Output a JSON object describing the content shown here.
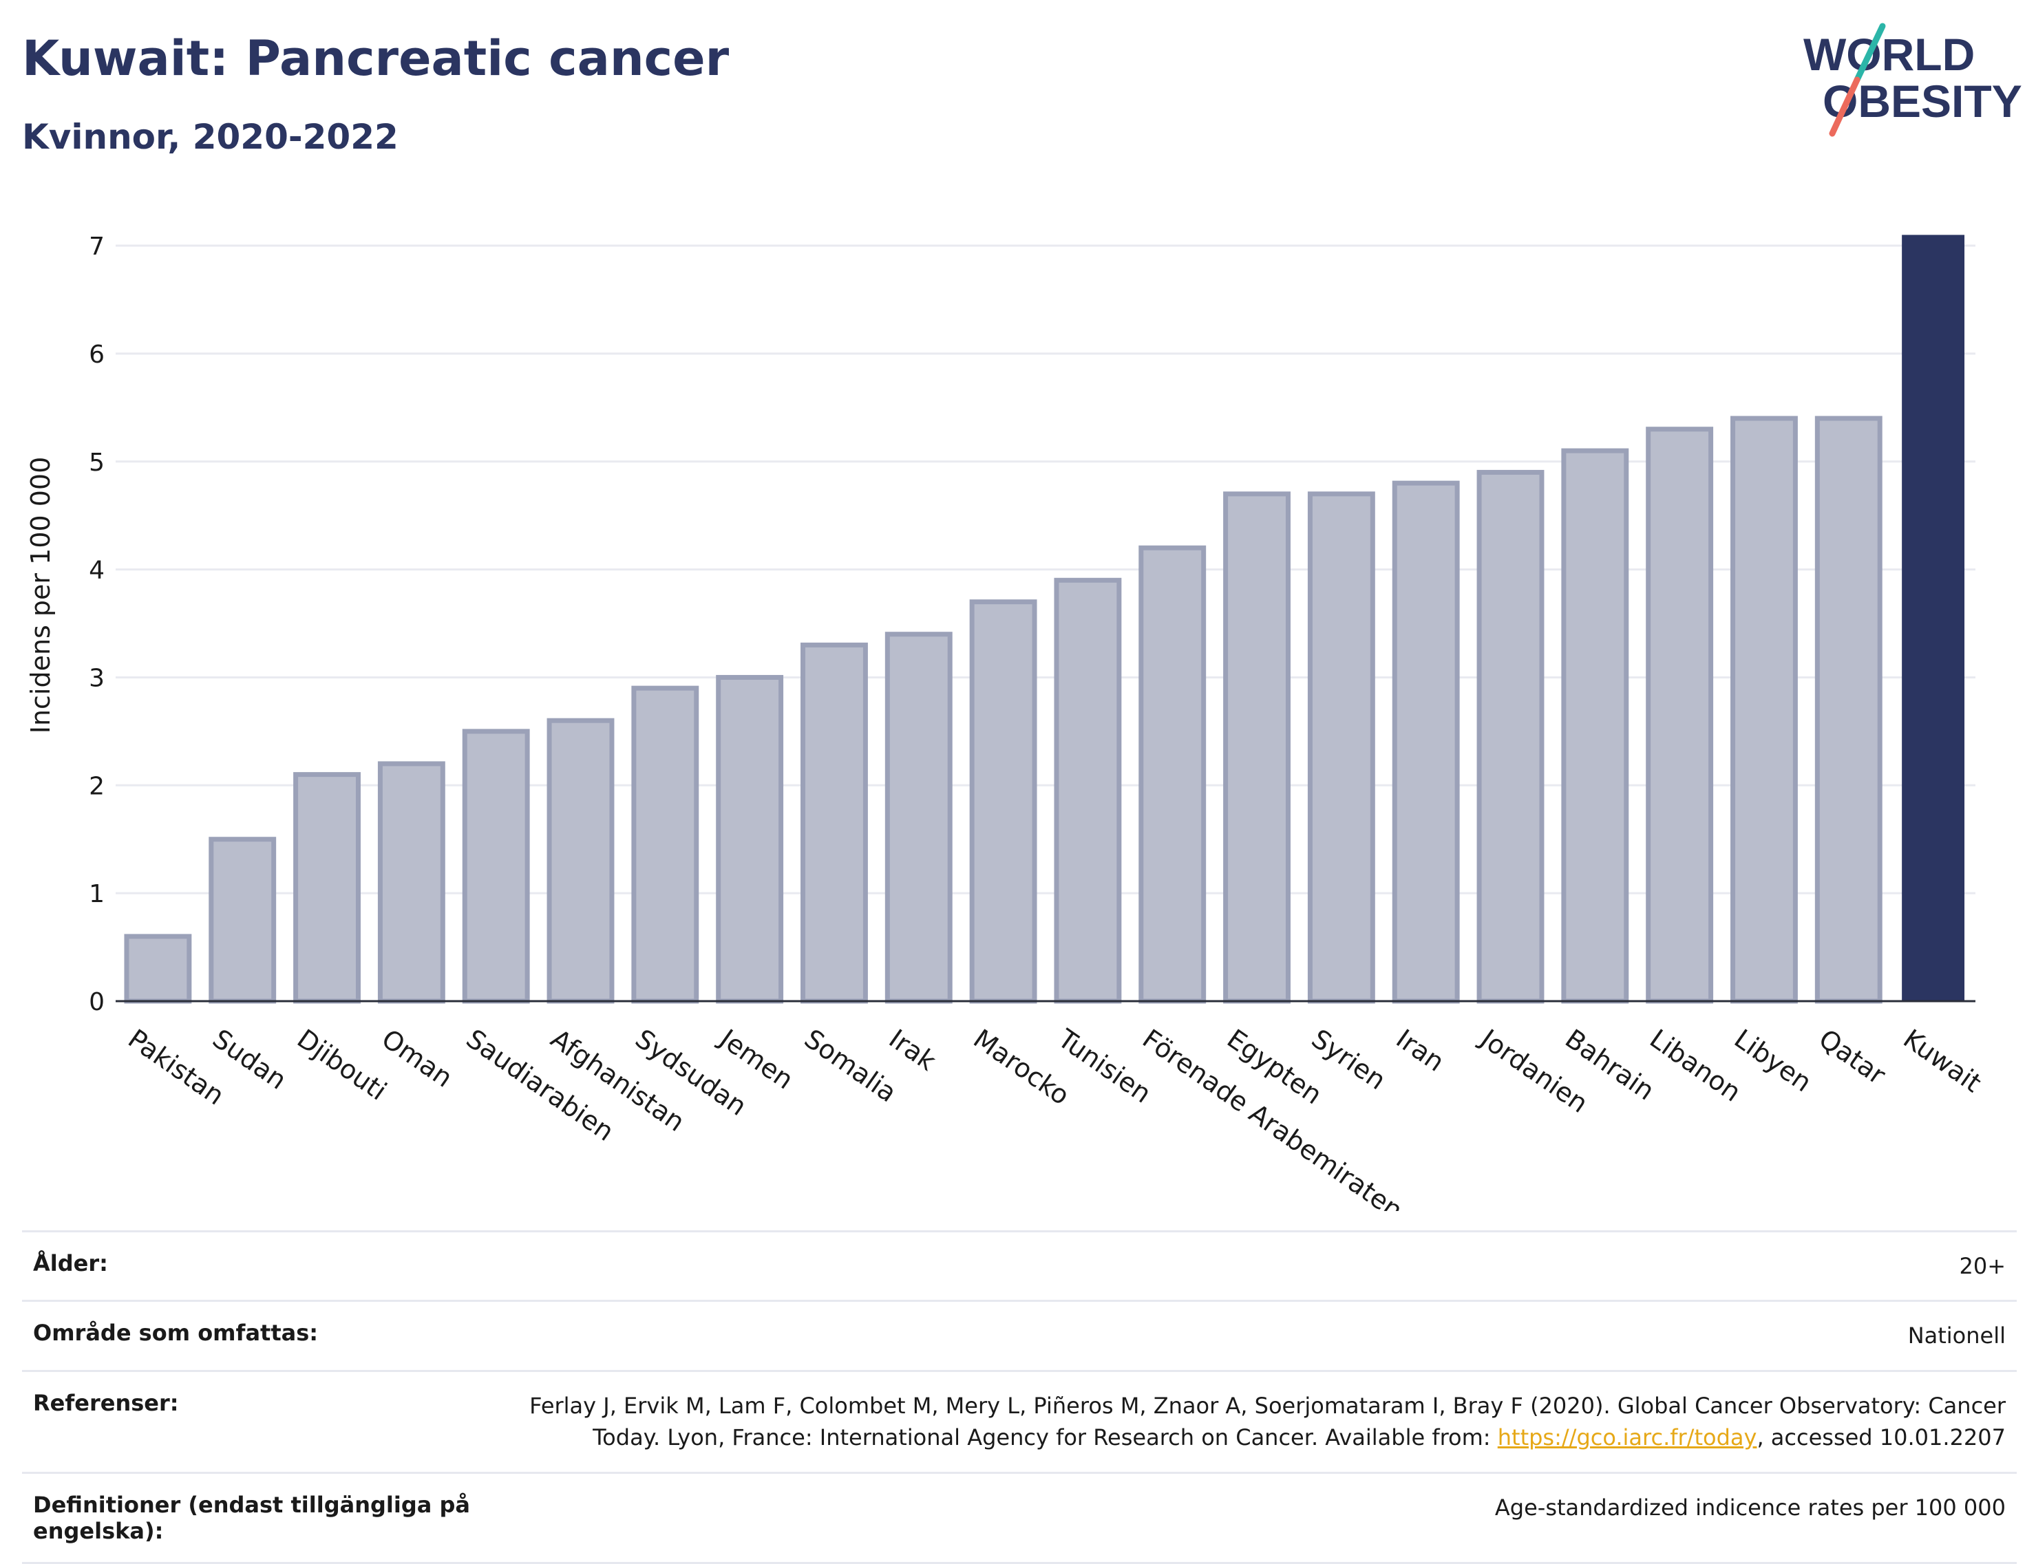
{
  "header": {
    "title": "Kuwait: Pancreatic cancer",
    "subtitle": "Kvinnor, 2020-2022"
  },
  "logo": {
    "line1": "WORLD",
    "line2": "OBESITY",
    "colors": {
      "text": "#2b3561",
      "slash_teal": "#2bb5a8",
      "slash_coral": "#ec6a5c"
    }
  },
  "colors": {
    "bar_fill": "#b9bdcc",
    "bar_stroke": "#9ba1b8",
    "highlight": "#2b3561",
    "grid": "#e9eaf0"
  },
  "chart_data": {
    "type": "bar",
    "title": "",
    "xlabel": "",
    "ylabel": "Incidens per 100 000",
    "ylim": [
      0,
      7.3
    ],
    "yticks": [
      0,
      1,
      2,
      3,
      4,
      5,
      6,
      7
    ],
    "grid": true,
    "highlight_category": "Kuwait",
    "categories": [
      "Pakistan",
      "Sudan",
      "Djibouti",
      "Oman",
      "Saudiarabien",
      "Afghanistan",
      "Sydsudan",
      "Jemen",
      "Somalia",
      "Irak",
      "Marocko",
      "Tunisien",
      "Förenade Arabemiraten",
      "Egypten",
      "Syrien",
      "Iran",
      "Jordanien",
      "Bahrain",
      "Libanon",
      "Libyen",
      "Qatar",
      "Kuwait"
    ],
    "values": [
      0.6,
      1.5,
      2.1,
      2.2,
      2.5,
      2.6,
      2.9,
      3.0,
      3.3,
      3.4,
      3.7,
      3.9,
      4.2,
      4.7,
      4.7,
      4.8,
      4.9,
      5.1,
      5.3,
      5.4,
      5.4,
      7.1
    ]
  },
  "meta": [
    {
      "label": "Ålder:",
      "value": "20+"
    },
    {
      "label": "Område som omfattas:",
      "value": "Nationell"
    },
    {
      "label": "Referenser:",
      "value_part1": "Ferlay J, Ervik M, Lam F, Colombet M, Mery L, Piñeros M, Znaor A, Soerjomataram I, Bray F (2020). Global Cancer Observatory: Cancer Today. Lyon, France: International Agency for Research on Cancer. Available from: ",
      "link": "https://gco.iarc.fr/today",
      "value_part2": ", accessed 10.01.2207"
    },
    {
      "label": "Definitioner (endast tillgängliga på engelska):",
      "value": "Age-standardized indicence rates per 100 000"
    }
  ]
}
